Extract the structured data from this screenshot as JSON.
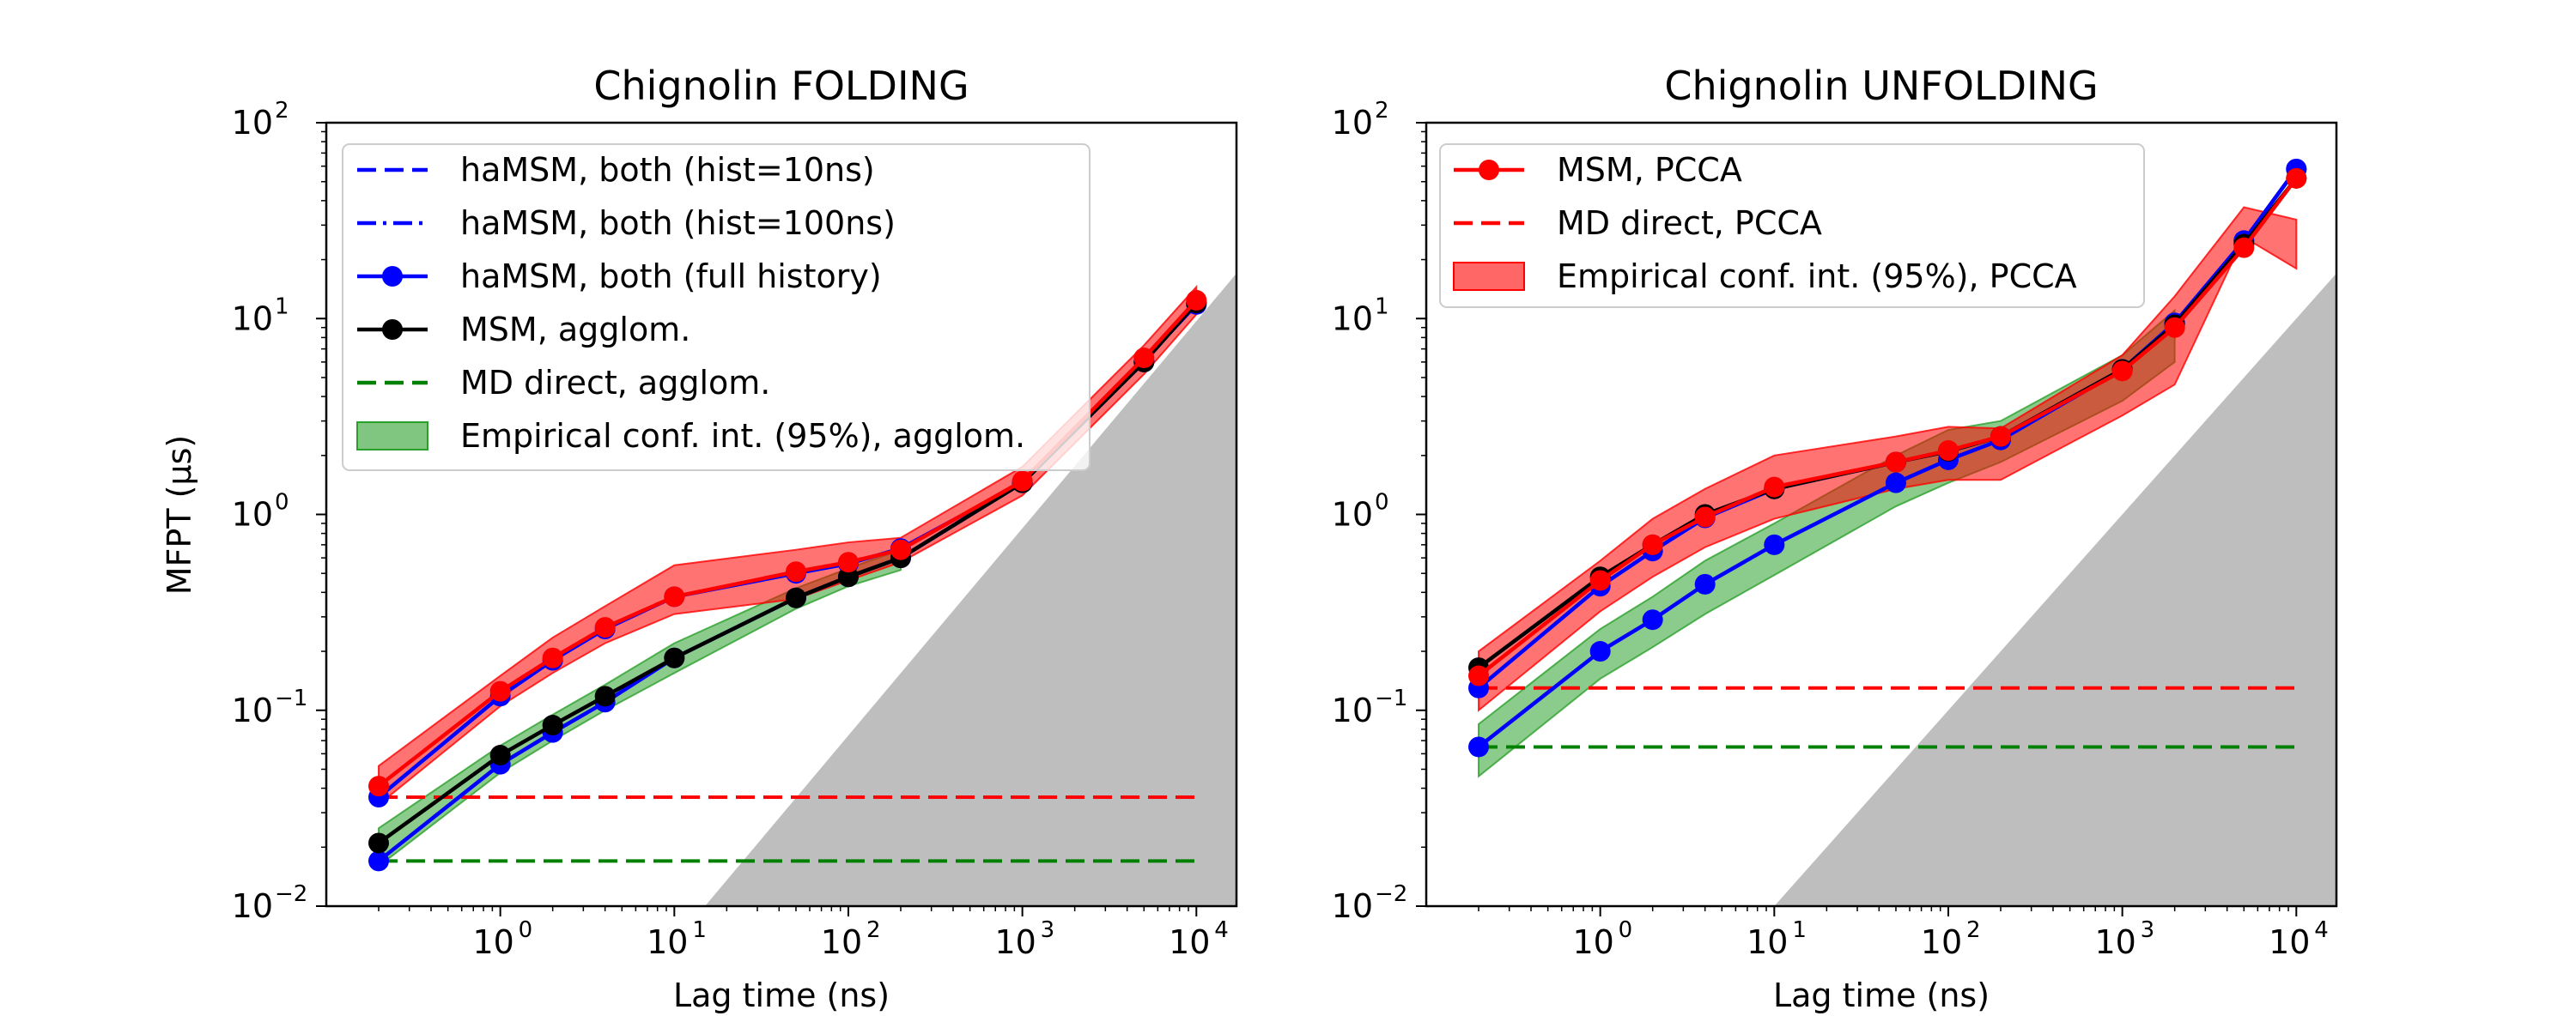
{
  "chart_data": [
    {
      "type": "line",
      "title": "Chignolin FOLDING",
      "xlabel": "Lag time (ns)",
      "ylabel": "MFPT (μs)",
      "x_scale": "log",
      "y_scale": "log",
      "xlim": [
        0.1,
        17000
      ],
      "ylim": [
        0.01,
        100
      ],
      "x_ticks": [
        {
          "label": "10",
          "exp": "0",
          "value": 1
        },
        {
          "label": "10",
          "exp": "1",
          "value": 10
        },
        {
          "label": "10",
          "exp": "2",
          "value": 100
        },
        {
          "label": "10",
          "exp": "3",
          "value": 1000
        },
        {
          "label": "10",
          "exp": "4",
          "value": 10000
        }
      ],
      "y_ticks": [
        {
          "label": "10",
          "exp": "−2",
          "value": 0.01
        },
        {
          "label": "10",
          "exp": "−1",
          "value": 0.1
        },
        {
          "label": "10",
          "exp": "0",
          "value": 1
        },
        {
          "label": "10",
          "exp": "1",
          "value": 10
        },
        {
          "label": "10",
          "exp": "2",
          "value": 100
        }
      ],
      "legend_position": "top-left",
      "legend": [
        {
          "label": "haMSM, both (hist=10ns)",
          "style": "dashed",
          "color": "#0000ff"
        },
        {
          "label": "haMSM, both (hist=100ns)",
          "style": "dashdot",
          "color": "#0000ff"
        },
        {
          "label": "haMSM, both (full history)",
          "style": "marker-line",
          "color": "#0000ff"
        },
        {
          "label": "MSM, agglom.",
          "style": "marker-line",
          "color": "#000000"
        },
        {
          "label": "MD direct, agglom.",
          "style": "dashed",
          "color": "#008000"
        },
        {
          "label": "Empirical conf. int. (95%), agglom.",
          "style": "patch",
          "color": "#2ca02c"
        }
      ],
      "series": [
        {
          "color": "#0000ff",
          "marker": true,
          "points": [
            [
              0.2,
              0.017
            ],
            [
              1,
              0.053
            ],
            [
              2,
              0.077
            ],
            [
              4,
              0.11
            ],
            [
              10,
              0.185
            ],
            [
              50,
              0.375
            ],
            [
              100,
              0.48
            ],
            [
              200,
              0.6
            ],
            [
              1000,
              1.45
            ],
            [
              5000,
              6.0
            ],
            [
              10000,
              12.0
            ]
          ]
        },
        {
          "color": "#0000ff",
          "marker": true,
          "points": [
            [
              0.2,
              0.036
            ],
            [
              1,
              0.118
            ],
            [
              2,
              0.18
            ],
            [
              4,
              0.26
            ],
            [
              10,
              0.38
            ],
            [
              50,
              0.5
            ],
            [
              100,
              0.56
            ],
            [
              200,
              0.67
            ],
            [
              1000,
              1.45
            ],
            [
              5000,
              6.1
            ],
            [
              10000,
              11.8
            ]
          ]
        },
        {
          "color": "#000000",
          "marker": true,
          "points": [
            [
              0.2,
              0.021
            ],
            [
              1,
              0.059
            ],
            [
              2,
              0.084
            ],
            [
              4,
              0.118
            ],
            [
              10,
              0.185
            ],
            [
              50,
              0.375
            ],
            [
              100,
              0.48
            ],
            [
              200,
              0.6
            ],
            [
              1000,
              1.45
            ],
            [
              5000,
              6.0
            ],
            [
              10000,
              12.0
            ]
          ]
        },
        {
          "color": "#ff0000",
          "marker": true,
          "points": [
            [
              0.2,
              0.041
            ],
            [
              1,
              0.125
            ],
            [
              2,
              0.185
            ],
            [
              4,
              0.265
            ],
            [
              10,
              0.38
            ],
            [
              50,
              0.51
            ],
            [
              100,
              0.57
            ],
            [
              200,
              0.66
            ],
            [
              1000,
              1.48
            ],
            [
              5000,
              6.3
            ],
            [
              10000,
              12.4
            ]
          ]
        }
      ],
      "reference_lines": [
        {
          "color": "#ff0000",
          "style": "dashed",
          "y": 0.036,
          "x": [
            0.2,
            10000
          ]
        },
        {
          "color": "#008000",
          "style": "dashed",
          "y": 0.017,
          "x": [
            0.2,
            10000
          ]
        }
      ],
      "bands": [
        {
          "color": "#2ca02c",
          "x": [
            0.2,
            1,
            2,
            4,
            10,
            50,
            100,
            200
          ],
          "lower": [
            0.016,
            0.048,
            0.07,
            0.1,
            0.155,
            0.33,
            0.43,
            0.52
          ],
          "upper": [
            0.025,
            0.066,
            0.095,
            0.135,
            0.22,
            0.42,
            0.53,
            0.66
          ]
        },
        {
          "color": "#ff0000",
          "x": [
            0.2,
            1,
            2,
            4,
            10,
            50,
            100,
            200,
            1000,
            5000,
            10000
          ],
          "lower": [
            0.033,
            0.105,
            0.155,
            0.22,
            0.31,
            0.37,
            0.46,
            0.57,
            1.25,
            5.2,
            10.5
          ],
          "upper": [
            0.052,
            0.15,
            0.235,
            0.34,
            0.55,
            0.66,
            0.72,
            0.76,
            1.75,
            7.3,
            14.5
          ]
        }
      ],
      "forbidden_region": {
        "color": "#bebebe",
        "line": [
          [
            15,
            0.01
          ],
          [
            17000,
            17
          ]
        ]
      }
    },
    {
      "type": "line",
      "title": "Chignolin UNFOLDING",
      "xlabel": "Lag time (ns)",
      "x_scale": "log",
      "y_scale": "log",
      "xlim": [
        0.1,
        17000
      ],
      "ylim": [
        0.01,
        100
      ],
      "x_ticks": [
        {
          "label": "10",
          "exp": "0",
          "value": 1
        },
        {
          "label": "10",
          "exp": "1",
          "value": 10
        },
        {
          "label": "10",
          "exp": "2",
          "value": 100
        },
        {
          "label": "10",
          "exp": "3",
          "value": 1000
        },
        {
          "label": "10",
          "exp": "4",
          "value": 10000
        }
      ],
      "y_ticks": [
        {
          "label": "10",
          "exp": "−2",
          "value": 0.01
        },
        {
          "label": "10",
          "exp": "−1",
          "value": 0.1
        },
        {
          "label": "10",
          "exp": "0",
          "value": 1
        },
        {
          "label": "10",
          "exp": "1",
          "value": 10
        },
        {
          "label": "10",
          "exp": "2",
          "value": 100
        }
      ],
      "legend_position": "top-left",
      "legend": [
        {
          "label": "MSM, PCCA",
          "style": "marker-line",
          "color": "#ff0000"
        },
        {
          "label": "MD direct, PCCA",
          "style": "dashed",
          "color": "#ff0000"
        },
        {
          "label": "Empirical conf. int. (95%), PCCA",
          "style": "patch",
          "color": "#ff0000"
        }
      ],
      "series": [
        {
          "color": "#0000ff",
          "marker": true,
          "points": [
            [
              0.2,
              0.065
            ],
            [
              1,
              0.2
            ],
            [
              2,
              0.29
            ],
            [
              4,
              0.44
            ],
            [
              10,
              0.7
            ],
            [
              50,
              1.45
            ],
            [
              100,
              1.9
            ],
            [
              200,
              2.4
            ],
            [
              1000,
              5.5
            ],
            [
              2000,
              9.5
            ],
            [
              5000,
              25.0
            ],
            [
              10000,
              58.0
            ]
          ]
        },
        {
          "color": "#0000ff",
          "marker": true,
          "points": [
            [
              0.2,
              0.13
            ],
            [
              1,
              0.43
            ],
            [
              2,
              0.65
            ],
            [
              4,
              0.96
            ],
            [
              10,
              1.35
            ],
            [
              50,
              1.85
            ],
            [
              100,
              2.1
            ],
            [
              200,
              2.5
            ],
            [
              1000,
              5.5
            ],
            [
              2000,
              9.5
            ],
            [
              5000,
              25.0
            ],
            [
              10000,
              58.0
            ]
          ]
        },
        {
          "color": "#000000",
          "marker": true,
          "points": [
            [
              0.2,
              0.165
            ],
            [
              1,
              0.48
            ],
            [
              2,
              0.7
            ],
            [
              4,
              1.0
            ],
            [
              10,
              1.35
            ],
            [
              50,
              1.85
            ],
            [
              100,
              2.1
            ],
            [
              200,
              2.5
            ],
            [
              1000,
              5.5
            ],
            [
              2000,
              9.3
            ],
            [
              5000,
              24.0
            ],
            [
              10000,
              52.0
            ]
          ]
        },
        {
          "color": "#ff0000",
          "marker": true,
          "points": [
            [
              0.2,
              0.15
            ],
            [
              1,
              0.46
            ],
            [
              2,
              0.7
            ],
            [
              4,
              0.97
            ],
            [
              10,
              1.38
            ],
            [
              50,
              1.85
            ],
            [
              100,
              2.12
            ],
            [
              200,
              2.5
            ],
            [
              1000,
              5.4
            ],
            [
              2000,
              9.0
            ],
            [
              5000,
              23.0
            ],
            [
              10000,
              52.0
            ]
          ]
        }
      ],
      "reference_lines": [
        {
          "color": "#ff0000",
          "style": "dashed",
          "y": 0.13,
          "x": [
            0.2,
            10000
          ]
        },
        {
          "color": "#008000",
          "style": "dashed",
          "y": 0.065,
          "x": [
            0.2,
            10000
          ]
        }
      ],
      "bands": [
        {
          "color": "#2ca02c",
          "x": [
            0.2,
            1,
            2,
            4,
            10,
            50,
            100,
            200,
            1000,
            2000
          ],
          "lower": [
            0.046,
            0.145,
            0.21,
            0.31,
            0.49,
            1.1,
            1.45,
            1.85,
            3.8,
            6.0
          ],
          "upper": [
            0.085,
            0.26,
            0.38,
            0.58,
            0.9,
            2.0,
            2.7,
            3.0,
            6.5,
            11.0
          ]
        },
        {
          "color": "#ff0000",
          "x": [
            0.2,
            1,
            2,
            4,
            10,
            50,
            100,
            200,
            1000,
            2000,
            5000,
            10000
          ],
          "lower": [
            0.1,
            0.32,
            0.48,
            0.68,
            0.95,
            1.35,
            1.5,
            1.5,
            3.2,
            4.6,
            26.0,
            18.0
          ],
          "upper": [
            0.2,
            0.58,
            0.95,
            1.35,
            2.0,
            2.5,
            2.8,
            2.75,
            6.5,
            13.0,
            37.0,
            32.0
          ]
        }
      ],
      "forbidden_region": {
        "color": "#bebebe",
        "line": [
          [
            10,
            0.01
          ],
          [
            17000,
            17
          ]
        ]
      }
    }
  ]
}
